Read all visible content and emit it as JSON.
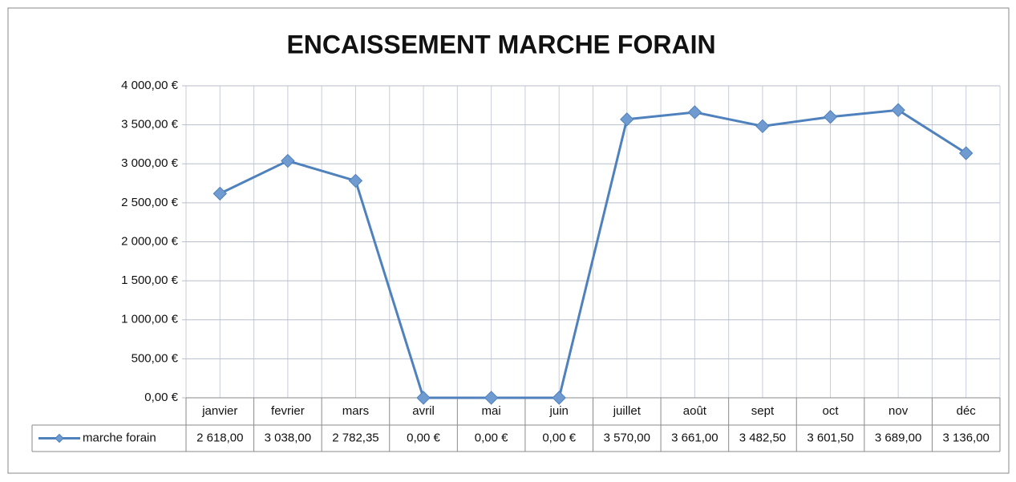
{
  "chart_data": {
    "type": "line",
    "title": "ENCAISSEMENT MARCHE FORAIN",
    "categories": [
      "janvier",
      "fevrier",
      "mars",
      "avril",
      "mai",
      "juin",
      "juillet",
      "août",
      "sept",
      "oct",
      "nov",
      "déc"
    ],
    "series": [
      {
        "name": "marche forain",
        "color": "#4f81bd",
        "values": [
          2618,
          3038,
          2782.35,
          0,
          0,
          0,
          3570,
          3661,
          3482.5,
          3601.5,
          3689,
          3136
        ],
        "value_labels": [
          "2 618,00",
          "3 038,00",
          "2 782,35",
          "0,00 €",
          "0,00 €",
          "0,00 €",
          "3 570,00",
          "3 661,00",
          "3 482,50",
          "3 601,50",
          "3 689,00",
          "3 136,00"
        ]
      }
    ],
    "ylim": [
      0,
      4000
    ],
    "yticks": [
      {
        "value": 0,
        "label": "0,00 €"
      },
      {
        "value": 500,
        "label": "500,00 €"
      },
      {
        "value": 1000,
        "label": "1 000,00 €"
      },
      {
        "value": 1500,
        "label": "1 500,00 €"
      },
      {
        "value": 2000,
        "label": "2 000,00 €"
      },
      {
        "value": 2500,
        "label": "2 500,00 €"
      },
      {
        "value": 3000,
        "label": "3 000,00 €"
      },
      {
        "value": 3500,
        "label": "3 500,00 €"
      },
      {
        "value": 4000,
        "label": "4 000,00 €"
      }
    ],
    "grid": true
  }
}
